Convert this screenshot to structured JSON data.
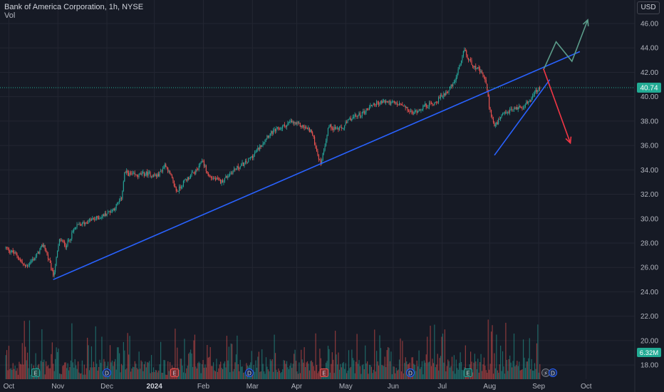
{
  "header": {
    "symbol_title": "Bank of America Corporation, 1h, NYSE",
    "vol_label": "Vol",
    "currency": "USD"
  },
  "price_axis": {
    "ticks": [
      "46.00",
      "44.00",
      "42.00",
      "40.00",
      "38.00",
      "36.00",
      "34.00",
      "32.00",
      "30.00",
      "28.00",
      "26.00",
      "24.00",
      "22.00",
      "20.00",
      "18.00"
    ],
    "current_price": "40.74",
    "current_volume": "6.32M"
  },
  "time_axis": {
    "labels": [
      "Oct",
      "Nov",
      "Dec",
      "2024",
      "Feb",
      "Mar",
      "Apr",
      "May",
      "Jun",
      "Jul",
      "Aug",
      "Sep",
      "Oct"
    ]
  },
  "event_markers": [
    {
      "kind": "earnings",
      "glyph": "E"
    },
    {
      "kind": "dividend",
      "glyph": "D"
    },
    {
      "kind": "earnings",
      "glyph": "E"
    },
    {
      "kind": "dividend",
      "glyph": "D"
    },
    {
      "kind": "earnings",
      "glyph": "E"
    },
    {
      "kind": "dividend",
      "glyph": "D"
    },
    {
      "kind": "earnings",
      "glyph": "E"
    },
    {
      "kind": "split",
      "glyph": "⚡"
    },
    {
      "kind": "dividend",
      "glyph": "D"
    }
  ],
  "colors": {
    "background": "#161a25",
    "up": "#26a69a",
    "down": "#ef5350",
    "trendline": "#2962ff",
    "bull_projection": "#5b9c8a",
    "bear_projection": "#f23645",
    "price_badge": "#22ab94",
    "grid": "#232632",
    "text": "#b2b5be"
  },
  "chart_data": {
    "type": "candlestick",
    "title": "Bank of America Corporation, 1h, NYSE",
    "currency": "USD",
    "ylim": [
      17,
      47
    ],
    "grid": true,
    "price_path": [
      [
        "2023-10-01",
        27.6
      ],
      [
        "2023-10-08",
        27.0
      ],
      [
        "2023-10-13",
        26.0
      ],
      [
        "2023-10-20",
        26.9
      ],
      [
        "2023-10-25",
        27.9
      ],
      [
        "2023-10-31",
        25.3
      ],
      [
        "2023-11-04",
        28.3
      ],
      [
        "2023-11-08",
        27.8
      ],
      [
        "2023-11-14",
        29.3
      ],
      [
        "2023-11-22",
        29.8
      ],
      [
        "2023-12-01",
        30.2
      ],
      [
        "2023-12-08",
        30.8
      ],
      [
        "2023-12-13",
        31.6
      ],
      [
        "2023-12-15",
        33.8
      ],
      [
        "2023-12-22",
        33.5
      ],
      [
        "2023-12-29",
        33.7
      ],
      [
        "2024-01-05",
        33.5
      ],
      [
        "2024-01-10",
        34.5
      ],
      [
        "2024-01-13",
        33.5
      ],
      [
        "2024-01-17",
        32.2
      ],
      [
        "2024-01-22",
        33.1
      ],
      [
        "2024-01-31",
        34.1
      ],
      [
        "2024-02-02",
        34.9
      ],
      [
        "2024-02-06",
        33.5
      ],
      [
        "2024-02-14",
        33.0
      ],
      [
        "2024-02-22",
        34.0
      ],
      [
        "2024-03-01",
        34.6
      ],
      [
        "2024-03-08",
        35.6
      ],
      [
        "2024-03-14",
        36.8
      ],
      [
        "2024-03-22",
        37.4
      ],
      [
        "2024-03-29",
        37.9
      ],
      [
        "2024-04-05",
        37.6
      ],
      [
        "2024-04-11",
        37.2
      ],
      [
        "2024-04-15",
        35.4
      ],
      [
        "2024-04-17",
        34.4
      ],
      [
        "2024-04-22",
        37.6
      ],
      [
        "2024-04-30",
        37.3
      ],
      [
        "2024-05-06",
        38.2
      ],
      [
        "2024-05-13",
        38.6
      ],
      [
        "2024-05-20",
        39.4
      ],
      [
        "2024-05-28",
        39.6
      ],
      [
        "2024-06-07",
        39.3
      ],
      [
        "2024-06-14",
        38.6
      ],
      [
        "2024-06-21",
        39.2
      ],
      [
        "2024-06-28",
        39.5
      ],
      [
        "2024-07-03",
        40.1
      ],
      [
        "2024-07-10",
        41.0
      ],
      [
        "2024-07-15",
        42.8
      ],
      [
        "2024-07-17",
        44.0
      ],
      [
        "2024-07-19",
        43.1
      ],
      [
        "2024-07-25",
        42.3
      ],
      [
        "2024-07-30",
        41.5
      ],
      [
        "2024-08-02",
        38.9
      ],
      [
        "2024-08-05",
        37.5
      ],
      [
        "2024-08-09",
        38.3
      ],
      [
        "2024-08-15",
        38.9
      ],
      [
        "2024-08-22",
        39.2
      ],
      [
        "2024-08-27",
        39.6
      ],
      [
        "2024-08-30",
        40.3
      ],
      [
        "2024-09-03",
        40.74
      ]
    ],
    "volume_range": [
      0,
      8
    ],
    "drawings": {
      "rising_trendline": [
        [
          "2023-10-31",
          25.0
        ],
        [
          "2024-09-28",
          43.7
        ]
      ],
      "rising_wedge_support": [
        [
          "2024-08-05",
          35.2
        ],
        [
          "2024-09-09",
          41.4
        ]
      ],
      "bullish_projection": [
        [
          "2024-09-05",
          42.2
        ],
        [
          "2024-09-13",
          44.5
        ],
        [
          "2024-09-23",
          42.9
        ],
        [
          "2024-10-03",
          46.3
        ]
      ],
      "bearish_projection": [
        [
          "2024-09-05",
          42.3
        ],
        [
          "2024-09-22",
          36.2
        ]
      ]
    }
  }
}
